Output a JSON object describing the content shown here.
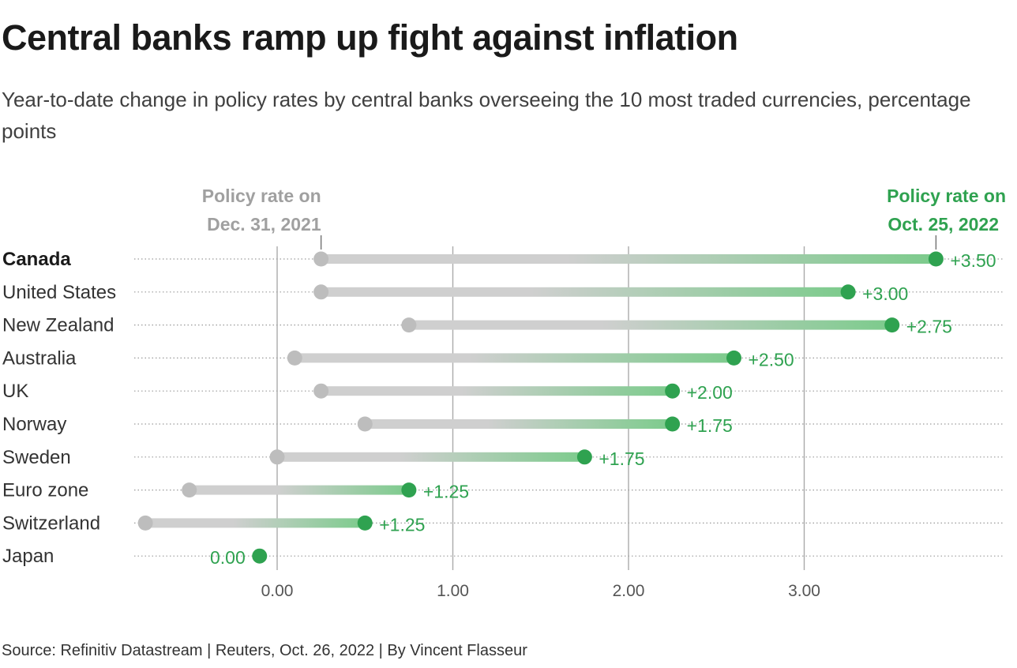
{
  "title": "Central banks ramp up fight against inflation",
  "subtitle": "Year-to-date change in policy rates by central banks overseeing the 10 most traded currencies, percentage points",
  "source": "Source: Refinitiv Datastream | Reuters, Oct. 26, 2022 | By Vincent Flasseur",
  "colors": {
    "start": "#bdbdbd",
    "end": "#2fa250",
    "text": "#1a1a1a",
    "muted": "#a0a0a0"
  },
  "chart_data": {
    "type": "dumbbell",
    "xlim": [
      -0.8,
      4.0
    ],
    "xticks": [
      0,
      1,
      2,
      3
    ],
    "xtick_labels": [
      "0.00",
      "1.00",
      "2.00",
      "3.00"
    ],
    "legend_start": [
      "Policy rate on",
      "Dec. 31, 2021"
    ],
    "legend_end": [
      "Policy rate on",
      "Oct. 25, 2022"
    ],
    "legend_start_at": 0.25,
    "legend_end_at": 3.75,
    "rows": [
      {
        "name": "Canada",
        "start": 0.25,
        "end": 3.75,
        "change": "+3.50",
        "bold": true
      },
      {
        "name": "United States",
        "start": 0.25,
        "end": 3.25,
        "change": "+3.00"
      },
      {
        "name": "New Zealand",
        "start": 0.75,
        "end": 3.5,
        "change": "+2.75"
      },
      {
        "name": "Australia",
        "start": 0.1,
        "end": 2.6,
        "change": "+2.50"
      },
      {
        "name": "UK",
        "start": 0.25,
        "end": 2.25,
        "change": "+2.00"
      },
      {
        "name": "Norway",
        "start": 0.5,
        "end": 2.25,
        "change": "+1.75"
      },
      {
        "name": "Sweden",
        "start": 0.0,
        "end": 1.75,
        "change": "+1.75"
      },
      {
        "name": "Euro zone",
        "start": -0.5,
        "end": 0.75,
        "change": "+1.25"
      },
      {
        "name": "Switzerland",
        "start": -0.75,
        "end": 0.5,
        "change": "+1.25"
      },
      {
        "name": "Japan",
        "start": -0.1,
        "end": -0.1,
        "change": "0.00"
      }
    ]
  }
}
